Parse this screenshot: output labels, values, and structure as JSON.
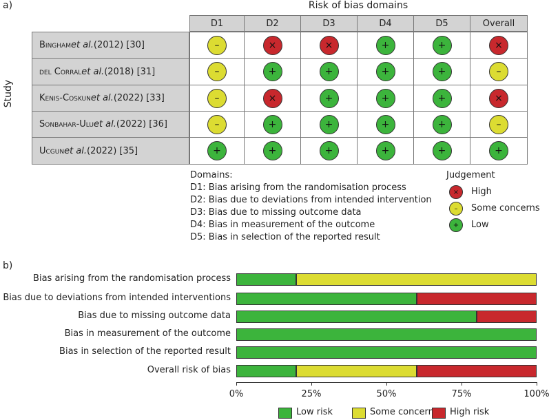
{
  "panel_a": {
    "label": "a)",
    "title": "Risk of bias domains",
    "y_label": "Study",
    "domains": [
      "D1",
      "D2",
      "D3",
      "D4",
      "D5",
      "Overall"
    ],
    "studies": [
      {
        "name": "Bingham",
        "suffix": " et al.",
        "rest": " (2012) [30]",
        "ratings": [
          "some",
          "high",
          "high",
          "low",
          "low",
          "high"
        ]
      },
      {
        "name": "del Corral",
        "suffix": " et al.",
        "rest": " (2018) [31]",
        "ratings": [
          "some",
          "low",
          "low",
          "low",
          "low",
          "some"
        ]
      },
      {
        "name": "Kenis-Coskun",
        "suffix": " et al.",
        "rest": " (2022) [33]",
        "ratings": [
          "some",
          "high",
          "low",
          "low",
          "low",
          "high"
        ]
      },
      {
        "name": "Sonbahar-Ulu",
        "suffix": " et al.",
        "rest": " (2022) [36]",
        "ratings": [
          "some",
          "low",
          "low",
          "low",
          "low",
          "some"
        ]
      },
      {
        "name": "Ucgun",
        "suffix": " et al.",
        "rest": " (2022) [35]",
        "ratings": [
          "low",
          "low",
          "low",
          "low",
          "low",
          "low"
        ]
      }
    ],
    "domains_legend": {
      "heading": "Domains:",
      "items": [
        "D1: Bias arising from the randomisation process",
        "D2: Bias due to deviations from intended intervention",
        "D3: Bias due to missing outcome data",
        "D4: Bias in measurement of the outcome",
        "D5: Bias in selection of the reported result"
      ]
    },
    "judgement_legend": {
      "heading": "Judgement",
      "items": [
        {
          "key": "high",
          "label": "High",
          "symbol": "×"
        },
        {
          "key": "some",
          "label": "Some concerns",
          "symbol": "–"
        },
        {
          "key": "low",
          "label": "Low",
          "symbol": "+"
        }
      ]
    },
    "symbols": {
      "high": "×",
      "some": "–",
      "low": "+"
    }
  },
  "colors": {
    "low": "#3cb43c",
    "some": "#dcdc32",
    "high": "#c8282d"
  },
  "chart_data": {
    "type": "bar",
    "orientation": "horizontal-stacked",
    "panel_label": "b)",
    "categories": [
      "Bias arising from the randomisation process",
      "Bias due to deviations from intended interventions",
      "Bias due to missing outcome data",
      "Bias in measurement of the outcome",
      "Bias in selection of the reported result",
      "Overall risk of bias"
    ],
    "series": [
      {
        "name": "Low risk",
        "key": "low",
        "values": [
          20,
          60,
          80,
          100,
          100,
          20
        ]
      },
      {
        "name": "Some concerns",
        "key": "some",
        "values": [
          80,
          0,
          0,
          0,
          0,
          40
        ]
      },
      {
        "name": "High risk",
        "key": "high",
        "values": [
          0,
          40,
          20,
          0,
          0,
          40
        ]
      }
    ],
    "xlim": [
      0,
      100
    ],
    "xticks": [
      "0%",
      "25%",
      "50%",
      "75%",
      "100%"
    ],
    "legend_position": "bottom"
  }
}
